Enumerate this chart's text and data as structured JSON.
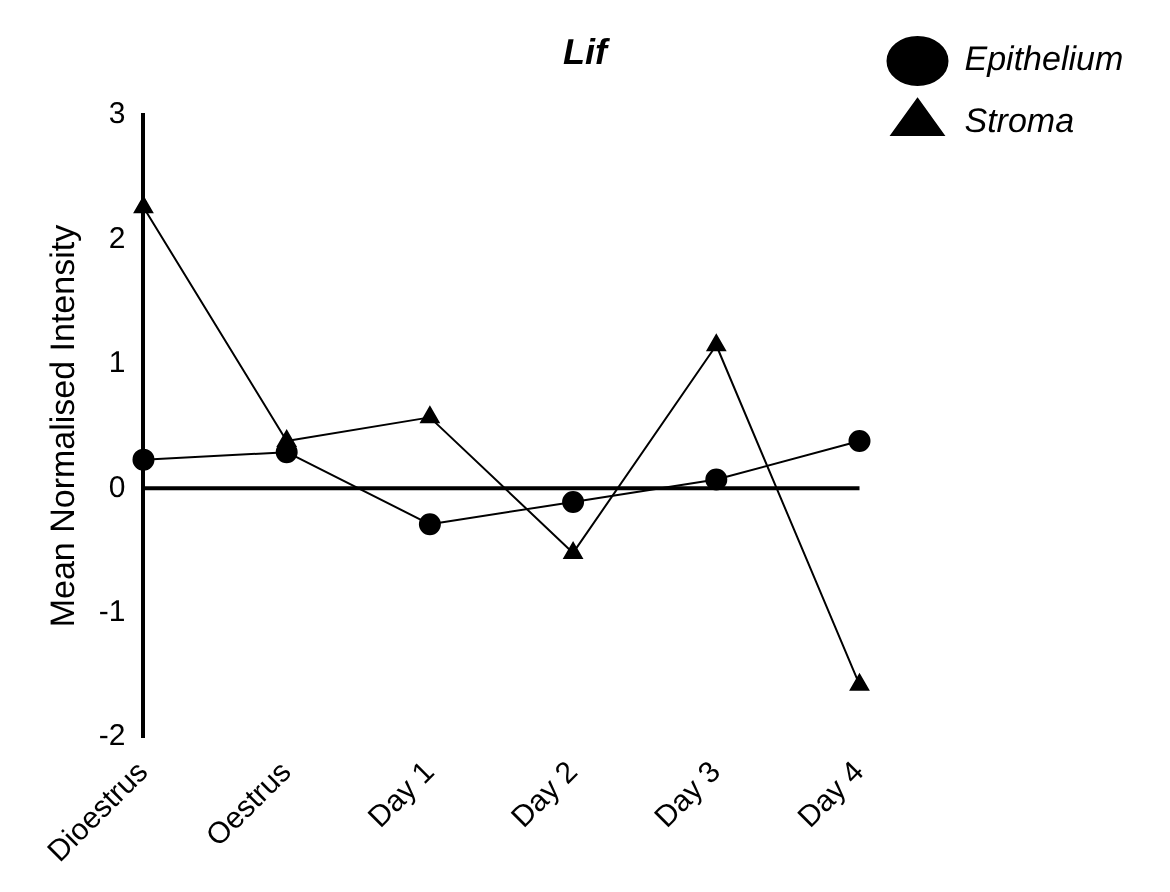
{
  "chart_data": {
    "type": "line",
    "title": "Lif",
    "ylabel": "Mean Normalised Intensity",
    "categories": [
      "Dioestrus",
      "Oestrus",
      "Day 1",
      "Day 2",
      "Day 3",
      "Day 4"
    ],
    "series": [
      {
        "name": "Epithelium",
        "color": "#000000",
        "marker": "circle",
        "values": [
          0.23,
          0.29,
          -0.29,
          -0.11,
          0.07,
          0.38
        ]
      },
      {
        "name": "Stroma",
        "color": "#000000",
        "marker": "triangle",
        "values": [
          2.26,
          0.38,
          0.57,
          -0.52,
          1.15,
          -1.58
        ]
      }
    ],
    "ylim": [
      -2,
      3
    ],
    "yticks": [
      -2,
      -1,
      0,
      1,
      2,
      3
    ],
    "grid": false,
    "legend": "top right",
    "line_style": "solid",
    "ref_lines": [
      {
        "axis": "y",
        "value": 0,
        "color": "#000000"
      }
    ]
  }
}
